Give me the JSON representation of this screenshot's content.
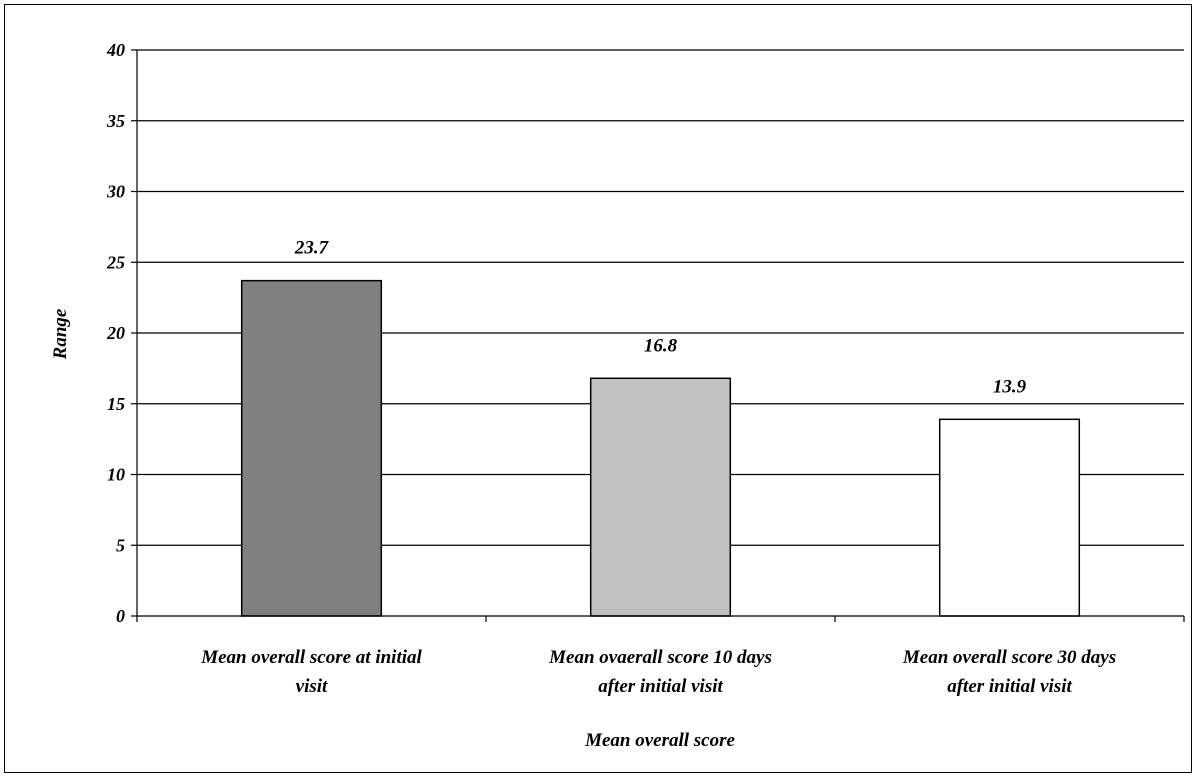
{
  "chart_data": {
    "type": "bar",
    "title": "",
    "xlabel": "Mean overall score",
    "ylabel": "Range",
    "ylim": [
      0,
      40
    ],
    "yticks": [
      0,
      5,
      10,
      15,
      20,
      25,
      30,
      35,
      40
    ],
    "grid": true,
    "legend": "none",
    "categories": [
      [
        "Mean overall score at initial",
        "visit"
      ],
      [
        "Mean ovaerall score 10 days",
        "after initial visit"
      ],
      [
        "Mean overall score 30 days",
        "after initial visit"
      ]
    ],
    "values": [
      23.7,
      16.8,
      13.9
    ],
    "data_labels": [
      "23.7",
      "16.8",
      "13.9"
    ],
    "colors": [
      "#808080",
      "#c0c0c0",
      "#ffffff"
    ]
  }
}
